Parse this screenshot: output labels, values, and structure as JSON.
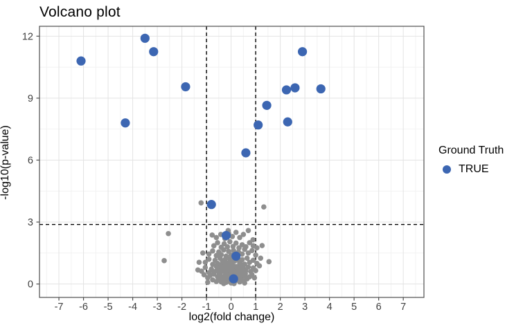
{
  "chart_data": {
    "type": "scatter",
    "title": "Volcano plot",
    "xlabel": "log2(fold change)",
    "ylabel": "-log10(p-value)",
    "xlim": [
      -7.79,
      7.84
    ],
    "ylim": [
      -0.65,
      12.48
    ],
    "x_ticks": [
      -7,
      -6,
      -5,
      -4,
      -3,
      -2,
      -1,
      0,
      1,
      2,
      3,
      4,
      5,
      6,
      7
    ],
    "y_ticks": [
      0,
      3,
      6,
      9,
      12
    ],
    "x_minor_ticks": [
      -7.5,
      -6.5,
      -5.5,
      -4.5,
      -3.5,
      -2.5,
      -1.5,
      -0.5,
      0.5,
      1.5,
      2.5,
      3.5,
      4.5,
      5.5,
      6.5,
      7.5
    ],
    "y_minor_ticks": [
      1.5,
      4.5,
      7.5,
      10.5
    ],
    "grid": true,
    "legend": {
      "title": "Ground Truth",
      "position": "right",
      "entries": [
        {
          "label": "TRUE",
          "color": "#3c66b2"
        }
      ]
    },
    "thresholds": {
      "vlines": [
        -1,
        1
      ],
      "hline": 2.88,
      "line_style": "dashed",
      "line_color": "#000000"
    },
    "colors": {
      "true_point": "#3c66b2",
      "background_point": "#8e8e8e",
      "grid_major": "#e3e3e3",
      "grid_minor": "#f2f2f2",
      "panel_border": "#4d4d4d",
      "tick_label": "#404040"
    },
    "series": [
      {
        "name": "TRUE",
        "color": "#3c66b2",
        "radius": 6.6,
        "points": [
          [
            -6.1,
            10.8
          ],
          [
            -3.5,
            11.9
          ],
          [
            -3.15,
            11.25
          ],
          [
            -4.3,
            7.8
          ],
          [
            -1.85,
            9.55
          ],
          [
            2.9,
            11.25
          ],
          [
            2.25,
            9.4
          ],
          [
            2.6,
            9.5
          ],
          [
            3.65,
            9.45
          ],
          [
            1.45,
            8.65
          ],
          [
            1.1,
            7.7
          ],
          [
            2.3,
            7.85
          ],
          [
            0.6,
            6.35
          ],
          [
            -0.8,
            3.85
          ],
          [
            -0.2,
            2.35
          ],
          [
            0.2,
            1.35
          ],
          [
            0.1,
            0.25
          ]
        ]
      },
      {
        "name": "background",
        "color": "#8e8e8e",
        "radius": 3.8,
        "points": [
          [
            -1.22,
            3.93
          ],
          [
            1.33,
            3.73
          ],
          [
            -2.55,
            2.44
          ],
          [
            -2.72,
            1.13
          ],
          [
            1.54,
            1.08
          ],
          [
            1.26,
            1.86
          ],
          [
            0.89,
            2.14
          ],
          [
            -0.77,
            2.37
          ],
          [
            0.7,
            2.59
          ],
          [
            -0.12,
            2.59
          ],
          [
            -1.1,
            0.45
          ],
          [
            -0.95,
            0.3
          ],
          [
            -0.85,
            0.42
          ],
          [
            -0.75,
            0.2
          ],
          [
            -0.7,
            0.48
          ],
          [
            -0.6,
            0.12
          ],
          [
            -0.55,
            0.35
          ],
          [
            -0.5,
            0.22
          ],
          [
            -0.45,
            0.45
          ],
          [
            -0.4,
            0.1
          ],
          [
            -0.35,
            0.3
          ],
          [
            -0.3,
            0.18
          ],
          [
            -0.25,
            0.42
          ],
          [
            -0.2,
            0.08
          ],
          [
            -0.15,
            0.28
          ],
          [
            -0.1,
            0.15
          ],
          [
            -0.05,
            0.38
          ],
          [
            0,
            0.05
          ],
          [
            0.05,
            0.25
          ],
          [
            0.1,
            0.45
          ],
          [
            0.15,
            0.12
          ],
          [
            0.2,
            0.32
          ],
          [
            0.25,
            0.2
          ],
          [
            0.3,
            0.44
          ],
          [
            0.35,
            0.1
          ],
          [
            0.4,
            0.3
          ],
          [
            0.5,
            0.16
          ],
          [
            0.55,
            0.4
          ],
          [
            0.65,
            0.25
          ],
          [
            0.75,
            0.35
          ],
          [
            0.85,
            0.45
          ],
          [
            0.95,
            0.3
          ],
          [
            -1.2,
            0.62
          ],
          [
            -1.05,
            0.8
          ],
          [
            -0.9,
            0.55
          ],
          [
            -0.8,
            0.72
          ],
          [
            -0.7,
            0.6
          ],
          [
            -0.6,
            0.85
          ],
          [
            -0.5,
            0.58
          ],
          [
            -0.45,
            0.75
          ],
          [
            -0.35,
            0.62
          ],
          [
            -0.3,
            0.88
          ],
          [
            -0.2,
            0.55
          ],
          [
            -0.15,
            0.78
          ],
          [
            -0.05,
            0.6
          ],
          [
            0,
            0.82
          ],
          [
            0.1,
            0.57
          ],
          [
            0.15,
            0.74
          ],
          [
            0.25,
            0.62
          ],
          [
            0.3,
            0.85
          ],
          [
            0.4,
            0.58
          ],
          [
            0.5,
            0.76
          ],
          [
            0.6,
            0.64
          ],
          [
            0.7,
            0.82
          ],
          [
            0.8,
            0.6
          ],
          [
            0.9,
            0.78
          ],
          [
            1,
            0.65
          ],
          [
            -1.05,
            1.05
          ],
          [
            -0.9,
            1.2
          ],
          [
            -0.75,
            0.95
          ],
          [
            -0.65,
            1.15
          ],
          [
            -0.55,
            1
          ],
          [
            -0.45,
            1.25
          ],
          [
            -0.35,
            0.98
          ],
          [
            -0.25,
            1.18
          ],
          [
            -0.15,
            1.02
          ],
          [
            -0.05,
            1.22
          ],
          [
            0.05,
            0.95
          ],
          [
            0.15,
            1.12
          ],
          [
            0.25,
            1.28
          ],
          [
            0.35,
            1
          ],
          [
            0.45,
            1.18
          ],
          [
            0.55,
            0.96
          ],
          [
            0.65,
            1.25
          ],
          [
            0.75,
            1.05
          ],
          [
            0.9,
            1.15
          ],
          [
            1.05,
            1
          ],
          [
            -0.9,
            1.45
          ],
          [
            -0.75,
            1.6
          ],
          [
            -0.6,
            1.38
          ],
          [
            -0.5,
            1.55
          ],
          [
            -0.4,
            1.42
          ],
          [
            -0.3,
            1.65
          ],
          [
            -0.2,
            1.35
          ],
          [
            -0.1,
            1.58
          ],
          [
            0,
            1.4
          ],
          [
            0.1,
            1.62
          ],
          [
            0.2,
            1.36
          ],
          [
            0.3,
            1.55
          ],
          [
            0.45,
            1.45
          ],
          [
            0.55,
            1.68
          ],
          [
            0.7,
            1.5
          ],
          [
            0.85,
            1.62
          ],
          [
            1,
            1.4
          ],
          [
            -0.7,
            1.85
          ],
          [
            -0.55,
            2
          ],
          [
            -0.4,
            1.78
          ],
          [
            -0.28,
            1.95
          ],
          [
            -0.15,
            1.8
          ],
          [
            -0.05,
            2.05
          ],
          [
            0.08,
            1.82
          ],
          [
            0.2,
            1.98
          ],
          [
            0.32,
            1.75
          ],
          [
            0.45,
            1.9
          ],
          [
            0.6,
            1.8
          ],
          [
            0.75,
            2
          ],
          [
            0.9,
            1.85
          ],
          [
            -0.6,
            2.25
          ],
          [
            -0.42,
            2.4
          ],
          [
            -0.25,
            2.2
          ],
          [
            -0.1,
            2.45
          ],
          [
            0.05,
            2.3
          ],
          [
            0.2,
            2.5
          ],
          [
            0.35,
            2.25
          ],
          [
            0.5,
            2.4
          ],
          [
            -1.35,
            0.68
          ],
          [
            -1.3,
            1.05
          ],
          [
            1.15,
            0.88
          ],
          [
            1.2,
            1.25
          ],
          [
            -1.15,
            1.5
          ],
          [
            1.05,
            1.75
          ],
          [
            -0.95,
            0.08
          ],
          [
            0.55,
            0.05
          ],
          [
            -0.3,
            0.02
          ],
          [
            0.12,
            0.02
          ],
          [
            -0.48,
            0.5
          ],
          [
            -0.38,
            0.68
          ],
          [
            -0.28,
            0.35
          ],
          [
            -0.22,
            0.7
          ],
          [
            -0.18,
            0.48
          ],
          [
            -0.12,
            0.9
          ],
          [
            -0.08,
            0.3
          ],
          [
            -0.02,
            0.52
          ],
          [
            0.02,
            0.72
          ],
          [
            0.08,
            0.35
          ],
          [
            0.12,
            0.55
          ],
          [
            0.18,
            0.85
          ],
          [
            0.22,
            0.45
          ],
          [
            0.28,
            0.65
          ],
          [
            0.33,
            0.5
          ],
          [
            0.38,
            0.78
          ],
          [
            0.42,
            0.42
          ],
          [
            0.48,
            0.62
          ],
          [
            -0.58,
            0.65
          ],
          [
            0.58,
            0.5
          ],
          [
            -0.05,
            1.05
          ],
          [
            0.05,
            1.1
          ],
          [
            -0.35,
            1.1
          ],
          [
            0.3,
            1.15
          ],
          [
            -0.2,
            0.95
          ],
          [
            0.18,
            0.25
          ],
          [
            -0.42,
            0.85
          ],
          [
            0.4,
            0.95
          ]
        ]
      }
    ]
  }
}
